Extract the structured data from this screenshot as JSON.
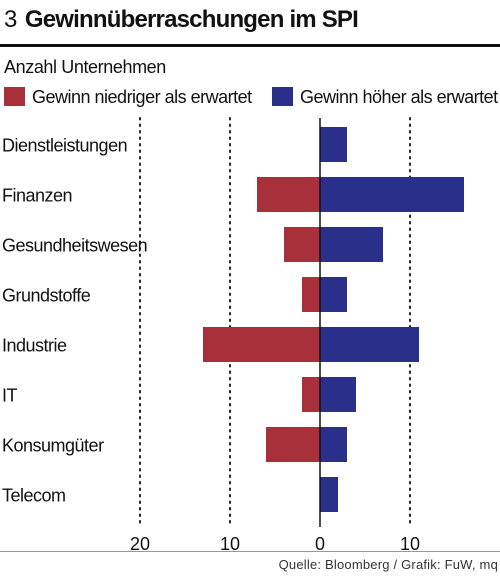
{
  "header": {
    "number": "3",
    "title": "Gewinnüberraschungen im SPI"
  },
  "source": "Quelle: Bloomberg / Grafik: FuW, mq",
  "colors": {
    "negative": "#a8303a",
    "positive": "#2a2f8a"
  },
  "chart_data": {
    "type": "bar",
    "orientation": "horizontal",
    "subtitle": "Anzahl Unternehmen",
    "categories": [
      "Dienstleistungen",
      "Finanzen",
      "Gesundheitswesen",
      "Grundstoffe",
      "Industrie",
      "IT",
      "Konsumgüter",
      "Telecom"
    ],
    "series": [
      {
        "name": "Gewinn niedriger als erwartet",
        "values": [
          0,
          7,
          4,
          2,
          13,
          2,
          6,
          0
        ]
      },
      {
        "name": "Gewinn höher als erwartet",
        "values": [
          3,
          16,
          7,
          3,
          11,
          4,
          3,
          2
        ]
      }
    ],
    "xlim": [
      -20,
      20
    ],
    "xticks": [
      -20,
      -10,
      0,
      10
    ],
    "xtick_labels": [
      "20",
      "10",
      "0",
      "10"
    ],
    "grid": "vertical dotted"
  }
}
